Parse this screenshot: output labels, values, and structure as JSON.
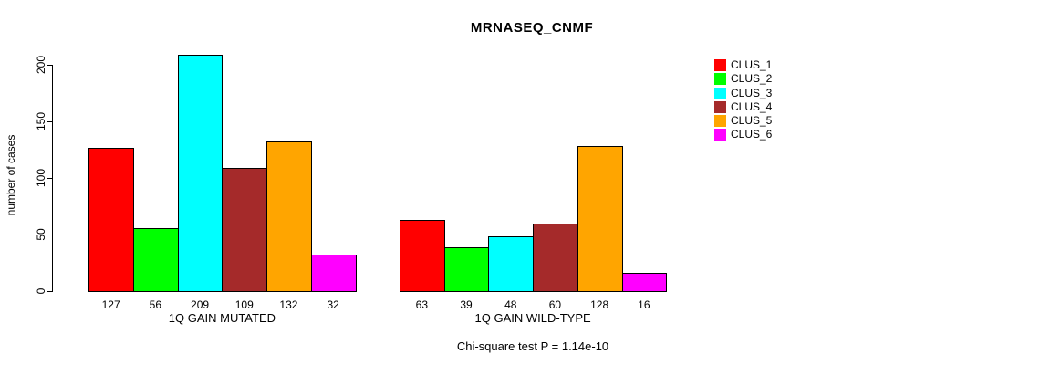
{
  "chart_data": {
    "type": "bar",
    "title": "MRNASEQ_CNMF",
    "ylabel": "number of cases",
    "yticks": [
      0,
      50,
      100,
      150,
      200
    ],
    "ylim": [
      0,
      209
    ],
    "grid": false,
    "legend_position": "right",
    "bar_value_labels_shown": true,
    "series": [
      {
        "name": "CLUS_1",
        "color": "#FF0000"
      },
      {
        "name": "CLUS_2",
        "color": "#00FF00"
      },
      {
        "name": "CLUS_3",
        "color": "#00FFFF"
      },
      {
        "name": "CLUS_4",
        "color": "#A52A2A"
      },
      {
        "name": "CLUS_5",
        "color": "#FFA500"
      },
      {
        "name": "CLUS_6",
        "color": "#FF00FF"
      }
    ],
    "groups": [
      {
        "label": "1Q GAIN MUTATED",
        "key": "mutated",
        "values": [
          127,
          56,
          209,
          109,
          132,
          32
        ]
      },
      {
        "label": "1Q GAIN WILD-TYPE",
        "key": "wild-type",
        "values": [
          63,
          39,
          48,
          60,
          128,
          16
        ]
      }
    ],
    "annotation": "Chi-square test P = 1.14e-10"
  }
}
